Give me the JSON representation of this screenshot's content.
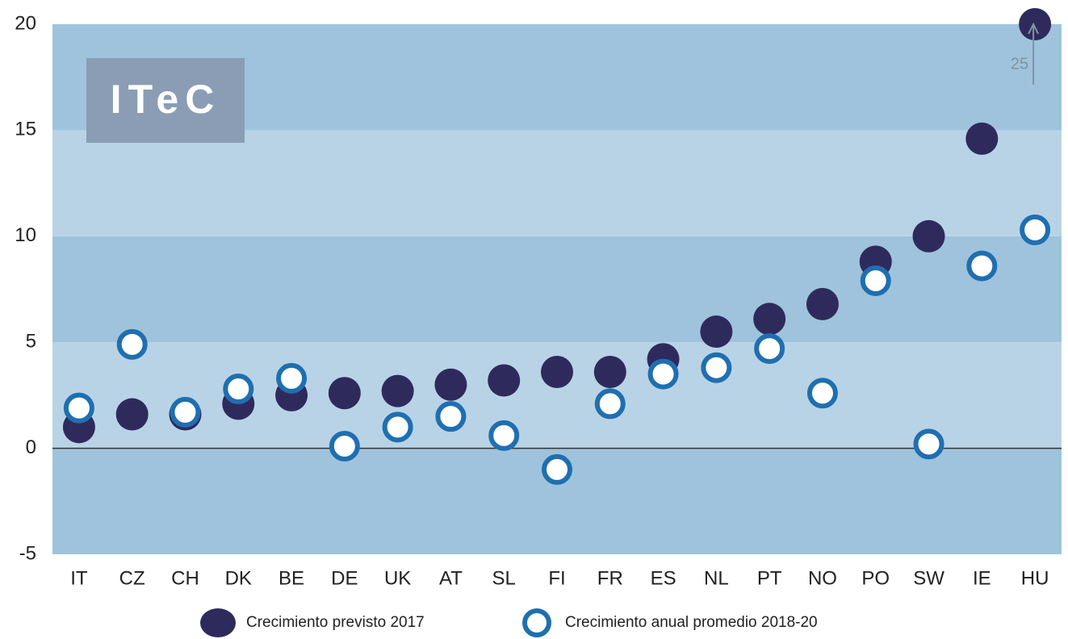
{
  "chart_data": {
    "type": "scatter",
    "logo": "ITeC",
    "annotation": "25",
    "categories": [
      "IT",
      "CZ",
      "CH",
      "DK",
      "BE",
      "DE",
      "UK",
      "AT",
      "SL",
      "FI",
      "FR",
      "ES",
      "NL",
      "PT",
      "NO",
      "PO",
      "SW",
      "IE",
      "HU"
    ],
    "series": [
      {
        "name": "Crecimiento previsto 2017",
        "color": "#2f2a5c",
        "style": "filled",
        "values": [
          1.0,
          1.6,
          1.6,
          2.1,
          2.5,
          2.6,
          2.7,
          3.0,
          3.2,
          3.6,
          3.6,
          4.2,
          5.5,
          6.1,
          6.8,
          8.8,
          10.0,
          14.6,
          20
        ]
      },
      {
        "name": "Crecimiento anual promedio 2018-20",
        "color": "#1f6fb0",
        "style": "open",
        "values": [
          1.9,
          4.9,
          1.7,
          2.8,
          3.3,
          0.1,
          1.0,
          1.5,
          0.6,
          -1.0,
          2.1,
          3.5,
          3.8,
          4.7,
          2.6,
          7.9,
          0.2,
          8.6,
          10.3
        ]
      }
    ],
    "ylim": [
      -5,
      20
    ],
    "yticks": [
      -5,
      0,
      5,
      10,
      15,
      20
    ],
    "band_colors": [
      "#9fc3dc",
      "#b9d3e6"
    ],
    "legend": "bottom"
  }
}
